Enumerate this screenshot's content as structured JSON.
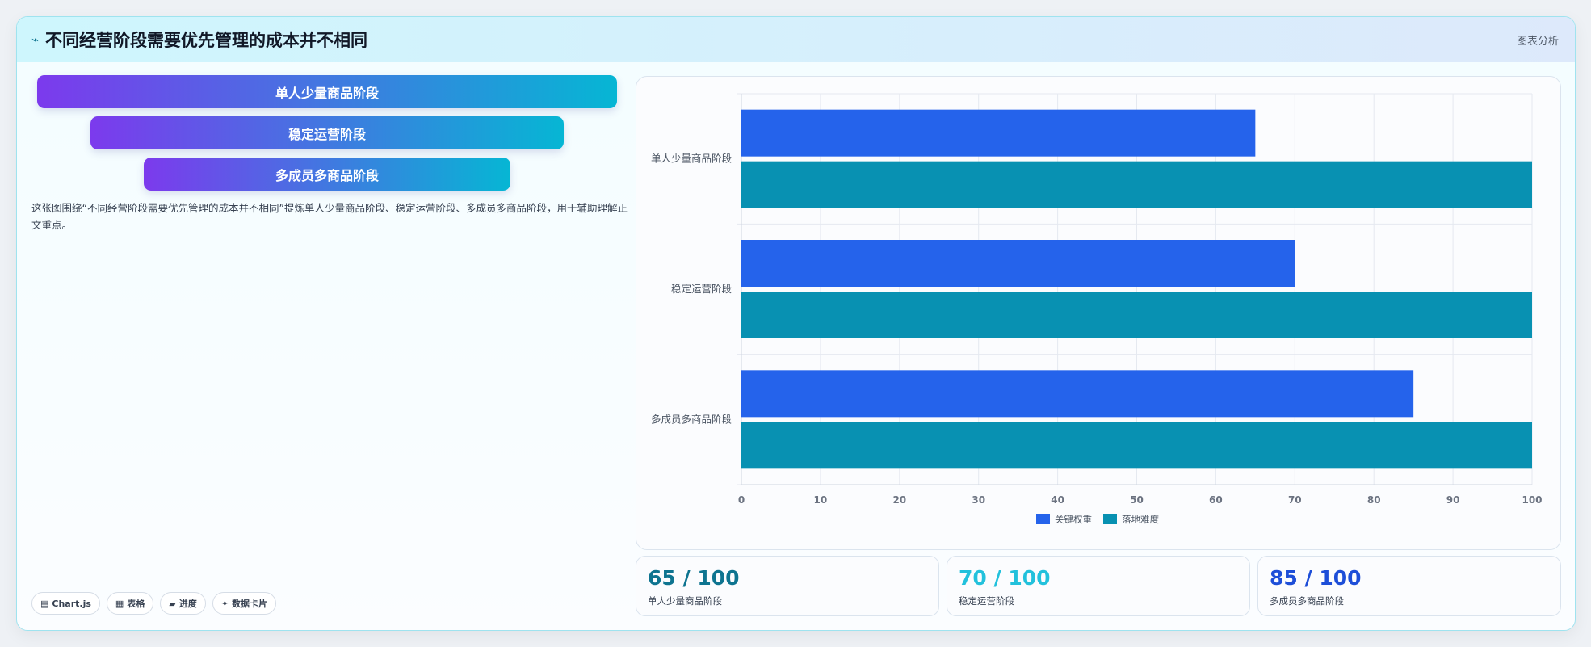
{
  "header": {
    "icon": "trend-icon",
    "title": "不同经营阶段需要优先管理的成本并不相同",
    "link_label": "图表分析"
  },
  "funnel": {
    "items": [
      "单人少量商品阶段",
      "稳定运营阶段",
      "多成员多商品阶段"
    ]
  },
  "description": "这张图围绕“不同经营阶段需要优先管理的成本并不相同”提炼单人少量商品阶段、稳定运营阶段、多成员多商品阶段，用于辅助理解正文重点。",
  "tags": [
    {
      "icon": "chart-icon",
      "glyph": "▤",
      "label": "Chart.js"
    },
    {
      "icon": "table-icon",
      "glyph": "▦",
      "label": "表格"
    },
    {
      "icon": "progress-icon",
      "glyph": "▰",
      "label": "进度"
    },
    {
      "icon": "card-icon",
      "glyph": "✦",
      "label": "数据卡片"
    }
  ],
  "chart_data": {
    "type": "bar",
    "orientation": "horizontal",
    "categories": [
      "单人少量商品阶段",
      "稳定运营阶段",
      "多成员多商品阶段"
    ],
    "series": [
      {
        "name": "关键权重",
        "values": [
          65,
          70,
          85
        ],
        "color": "#2563eb"
      },
      {
        "name": "落地难度",
        "values": [
          100,
          100,
          100
        ],
        "color": "#0891b2"
      }
    ],
    "xlim": [
      0,
      100
    ],
    "xticks": [
      0,
      10,
      20,
      30,
      40,
      50,
      60,
      70,
      80,
      90,
      100
    ],
    "grid": true,
    "legend": "bottom"
  },
  "stats": [
    {
      "value": "65 / 100",
      "label": "单人少量商品阶段",
      "color": "#0e7490"
    },
    {
      "value": "70 / 100",
      "label": "稳定运营阶段",
      "color": "#22c1dc"
    },
    {
      "value": "85 / 100",
      "label": "多成员多商品阶段",
      "color": "#1d4ed8"
    }
  ]
}
